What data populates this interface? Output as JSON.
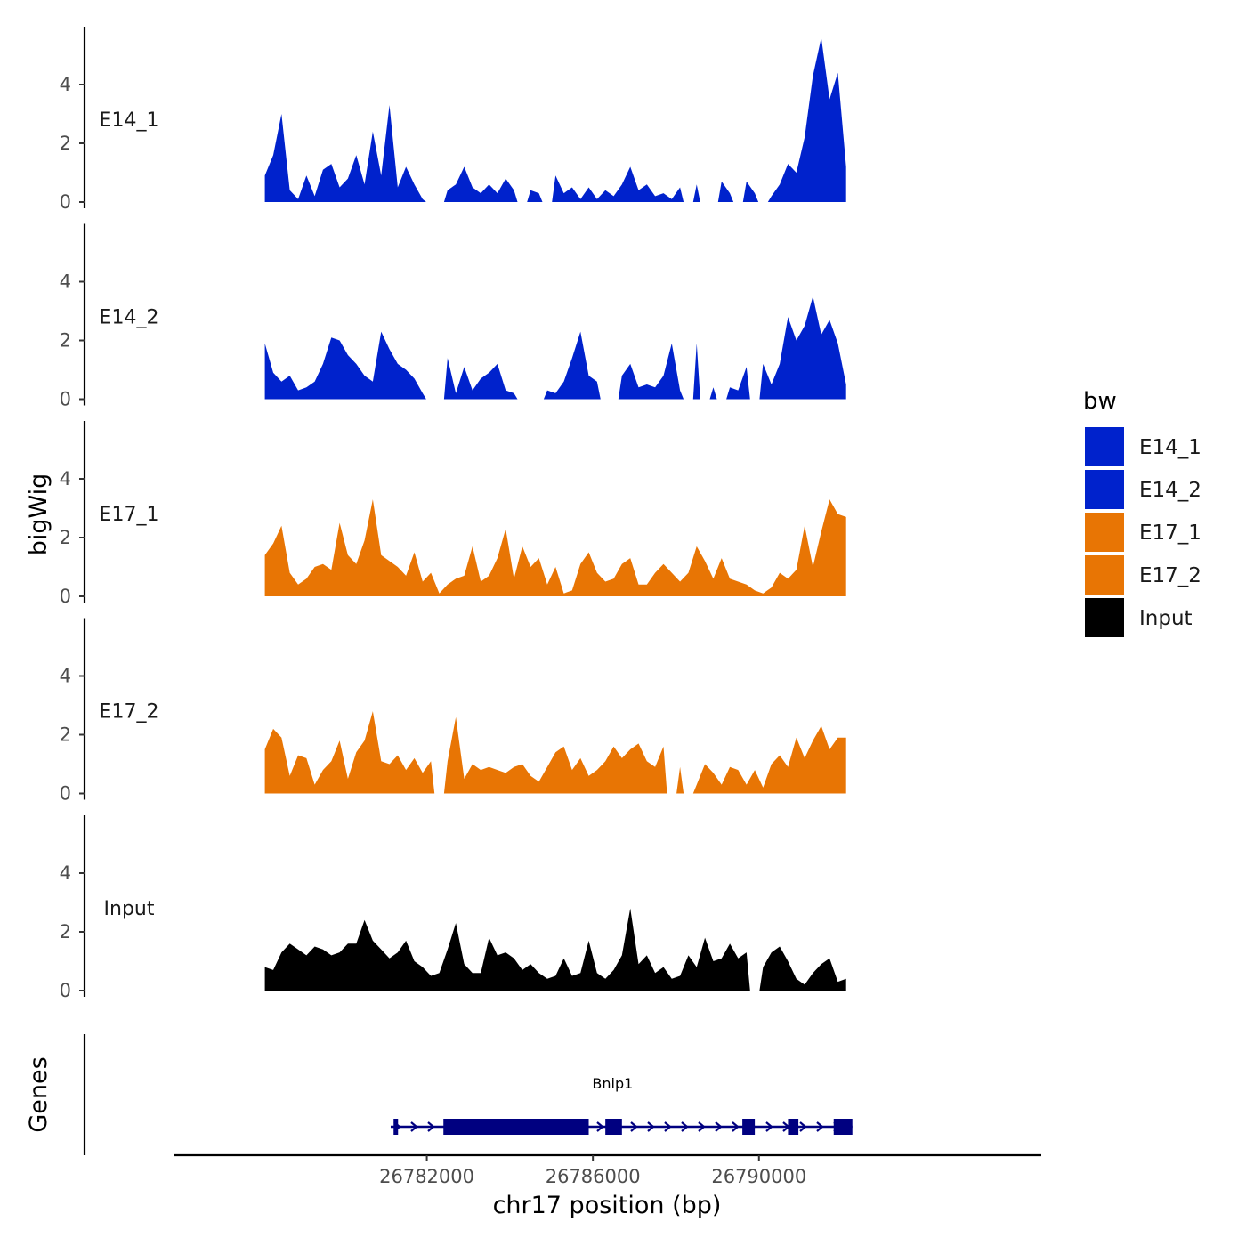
{
  "chart_data": {
    "type": "area",
    "y_axis_title": "bigWig",
    "genes_axis_title": "Genes",
    "x_axis_title": "chr17 position (bp)",
    "x_range": [
      26775900,
      26796800
    ],
    "y_range": [
      0,
      5.8
    ],
    "y_ticks": [
      0,
      2,
      4
    ],
    "x_ticks": [
      26782000,
      26786000,
      26790000
    ],
    "x_tick_labels": [
      "26782000",
      "26786000",
      "26790000"
    ],
    "legend": {
      "title": "bw",
      "entries": [
        {
          "label": "E14_1",
          "color": "#0022CC"
        },
        {
          "label": "E14_2",
          "color": "#0022CC"
        },
        {
          "label": "E17_1",
          "color": "#E87504"
        },
        {
          "label": "E17_2",
          "color": "#E87504"
        },
        {
          "label": "Input",
          "color": "#000000"
        }
      ]
    },
    "x": [
      26778100,
      26778300,
      26778500,
      26778700,
      26778900,
      26779100,
      26779300,
      26779500,
      26779700,
      26779900,
      26780100,
      26780300,
      26780500,
      26780700,
      26780900,
      26781100,
      26781300,
      26781500,
      26781700,
      26781900,
      26782100,
      26782300,
      26782500,
      26782700,
      26782900,
      26783100,
      26783300,
      26783500,
      26783700,
      26783900,
      26784100,
      26784300,
      26784500,
      26784700,
      26784900,
      26785100,
      26785300,
      26785500,
      26785700,
      26785900,
      26786100,
      26786300,
      26786500,
      26786700,
      26786900,
      26787100,
      26787300,
      26787500,
      26787700,
      26787900,
      26788100,
      26788300,
      26788500,
      26788700,
      26788900,
      26789100,
      26789300,
      26789500,
      26789700,
      26789900,
      26790100,
      26790300,
      26790500,
      26790700,
      26790900,
      26791100,
      26791300,
      26791500,
      26791700,
      26791900,
      26792100
    ],
    "series": [
      {
        "name": "E14_1",
        "color": "#0022CC",
        "values": [
          0.9,
          1.6,
          3.0,
          0.4,
          0.1,
          0.9,
          0.2,
          1.1,
          1.3,
          0.5,
          0.8,
          1.6,
          0.6,
          2.4,
          0.9,
          3.3,
          0.5,
          1.2,
          0.6,
          0.1,
          0,
          0,
          0.4,
          0.6,
          1.2,
          0.5,
          0.3,
          0.6,
          0.3,
          0.8,
          0.4,
          0,
          0.4,
          0.3,
          0,
          0.9,
          0.3,
          0.5,
          0.1,
          0.5,
          0.1,
          0.4,
          0.2,
          0.6,
          1.2,
          0.4,
          0.6,
          0.2,
          0.3,
          0.1,
          0.5,
          0,
          0.6,
          0,
          0,
          0.7,
          0.3,
          0,
          0.7,
          0.3,
          0,
          0.2,
          0.6,
          1.3,
          1.0,
          2.2,
          4.3,
          5.6,
          3.5,
          4.4,
          1.2
        ]
      },
      {
        "name": "E14_2",
        "color": "#0022CC",
        "values": [
          1.9,
          0.9,
          0.6,
          0.8,
          0.3,
          0.4,
          0.6,
          1.2,
          2.1,
          2.0,
          1.5,
          1.2,
          0.8,
          0.6,
          2.3,
          1.7,
          1.2,
          1.0,
          0.7,
          0.2,
          0,
          0,
          1.4,
          0.2,
          1.1,
          0.3,
          0.7,
          0.9,
          1.2,
          0.3,
          0.2,
          0,
          0,
          0,
          0.3,
          0.2,
          0.6,
          1.4,
          2.3,
          0.8,
          0.6,
          0,
          0,
          0.8,
          1.2,
          0.4,
          0.5,
          0.4,
          0.8,
          1.9,
          0.3,
          0,
          1.9,
          0,
          0.4,
          0,
          0.4,
          0.3,
          1.1,
          0,
          1.2,
          0.5,
          1.2,
          2.8,
          2.0,
          2.5,
          3.5,
          2.2,
          2.7,
          1.9,
          0.5
        ]
      },
      {
        "name": "E17_1",
        "color": "#E87504",
        "values": [
          1.4,
          1.8,
          2.4,
          0.8,
          0.4,
          0.6,
          1.0,
          1.1,
          0.9,
          2.5,
          1.4,
          1.1,
          1.9,
          3.3,
          1.4,
          1.2,
          1.0,
          0.7,
          1.5,
          0.5,
          0.8,
          0.1,
          0.4,
          0.6,
          0.7,
          1.7,
          0.5,
          0.7,
          1.3,
          2.3,
          0.6,
          1.7,
          1.0,
          1.3,
          0.4,
          1.0,
          0.1,
          0.2,
          1.1,
          1.5,
          0.8,
          0.5,
          0.6,
          1.1,
          1.3,
          0.4,
          0.4,
          0.8,
          1.1,
          0.8,
          0.5,
          0.8,
          1.7,
          1.2,
          0.6,
          1.3,
          0.6,
          0.5,
          0.4,
          0.2,
          0.1,
          0.3,
          0.8,
          0.6,
          0.9,
          2.4,
          1.0,
          2.2,
          3.3,
          2.8,
          2.7
        ]
      },
      {
        "name": "E17_2",
        "color": "#E87504",
        "values": [
          1.5,
          2.2,
          1.9,
          0.6,
          1.3,
          1.2,
          0.3,
          0.8,
          1.1,
          1.8,
          0.5,
          1.4,
          1.8,
          2.8,
          1.1,
          1.0,
          1.3,
          0.8,
          1.2,
          0.7,
          1.1,
          0,
          1.1,
          2.6,
          0.5,
          1.0,
          0.8,
          0.9,
          0.8,
          0.7,
          0.9,
          1.0,
          0.6,
          0.4,
          0.9,
          1.4,
          1.6,
          0.8,
          1.2,
          0.6,
          0.8,
          1.1,
          1.6,
          1.2,
          1.5,
          1.7,
          1.1,
          0.9,
          1.6,
          0,
          0.9,
          0,
          0.3,
          1.0,
          0.7,
          0.3,
          0.9,
          0.8,
          0.3,
          0.8,
          0.2,
          1.0,
          1.3,
          0.9,
          1.9,
          1.2,
          1.8,
          2.3,
          1.5,
          1.9,
          1.9
        ]
      },
      {
        "name": "Input",
        "color": "#000000",
        "values": [
          0.8,
          0.7,
          1.3,
          1.6,
          1.4,
          1.2,
          1.5,
          1.4,
          1.2,
          1.3,
          1.6,
          1.6,
          2.4,
          1.7,
          1.4,
          1.1,
          1.3,
          1.7,
          1.0,
          0.8,
          0.5,
          0.6,
          1.4,
          2.3,
          0.9,
          0.6,
          0.6,
          1.8,
          1.2,
          1.3,
          1.1,
          0.7,
          0.9,
          0.6,
          0.4,
          0.5,
          1.1,
          0.5,
          0.6,
          1.7,
          0.6,
          0.4,
          0.7,
          1.2,
          2.8,
          0.9,
          1.2,
          0.6,
          0.8,
          0.4,
          0.5,
          1.2,
          0.8,
          1.8,
          1.0,
          1.1,
          1.6,
          1.1,
          1.3,
          0,
          0.8,
          1.3,
          1.5,
          1.0,
          0.4,
          0.2,
          0.6,
          0.9,
          1.1,
          0.3,
          0.4
        ]
      }
    ],
    "genes": [
      {
        "name": "Bnip1",
        "start": 26781130,
        "end": 26792250,
        "strand": "+",
        "exons": [
          [
            26781200,
            26781300
          ],
          [
            26782400,
            26785900
          ],
          [
            26786300,
            26786700
          ],
          [
            26789600,
            26789900
          ],
          [
            26790700,
            26790950
          ],
          [
            26791800,
            26792250
          ]
        ]
      }
    ]
  }
}
